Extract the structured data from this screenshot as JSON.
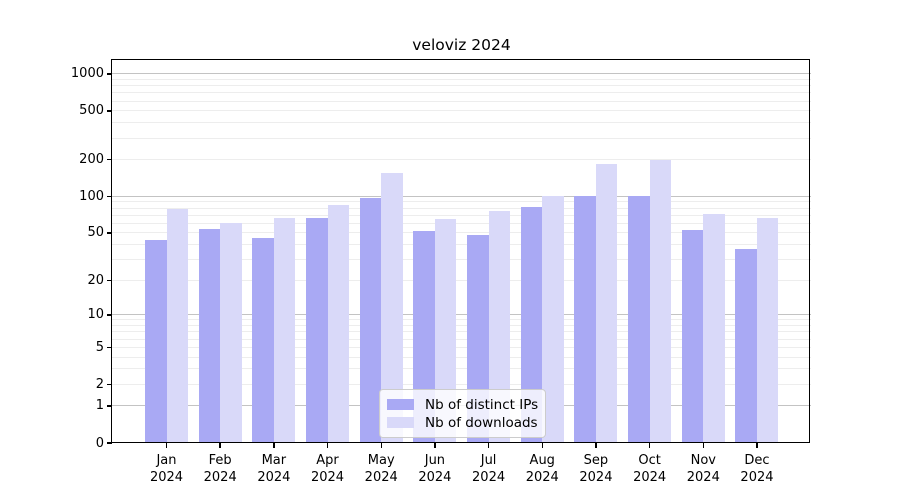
{
  "chart_data": {
    "type": "bar",
    "title": "veloviz 2024",
    "categories": [
      "Jan",
      "Feb",
      "Mar",
      "Apr",
      "May",
      "Jun",
      "Jul",
      "Aug",
      "Sep",
      "Oct",
      "Nov",
      "Dec"
    ],
    "category_year": "2024",
    "series": [
      {
        "name": "Nb of distinct IPs",
        "color": "#a9a9f4",
        "values": [
          44,
          54,
          45,
          67,
          97,
          52,
          48,
          82,
          100,
          101,
          53,
          37
        ]
      },
      {
        "name": "Nb of downloads",
        "color": "#d9d9f9",
        "values": [
          79,
          60,
          66,
          85,
          157,
          65,
          76,
          101,
          183,
          198,
          72,
          67
        ]
      }
    ],
    "y_scale": "log1p",
    "ylim": [
      0,
      1296
    ],
    "y_ticks": [
      0,
      1,
      2,
      5,
      10,
      20,
      50,
      100,
      200,
      500,
      1000
    ],
    "y_major_gridlines": [
      1,
      10,
      100,
      1000
    ],
    "grid_major_color": "#c3c3c3",
    "grid_minor_color": "#ededed",
    "axis_color": "#000000",
    "legend_position": "lower center"
  }
}
